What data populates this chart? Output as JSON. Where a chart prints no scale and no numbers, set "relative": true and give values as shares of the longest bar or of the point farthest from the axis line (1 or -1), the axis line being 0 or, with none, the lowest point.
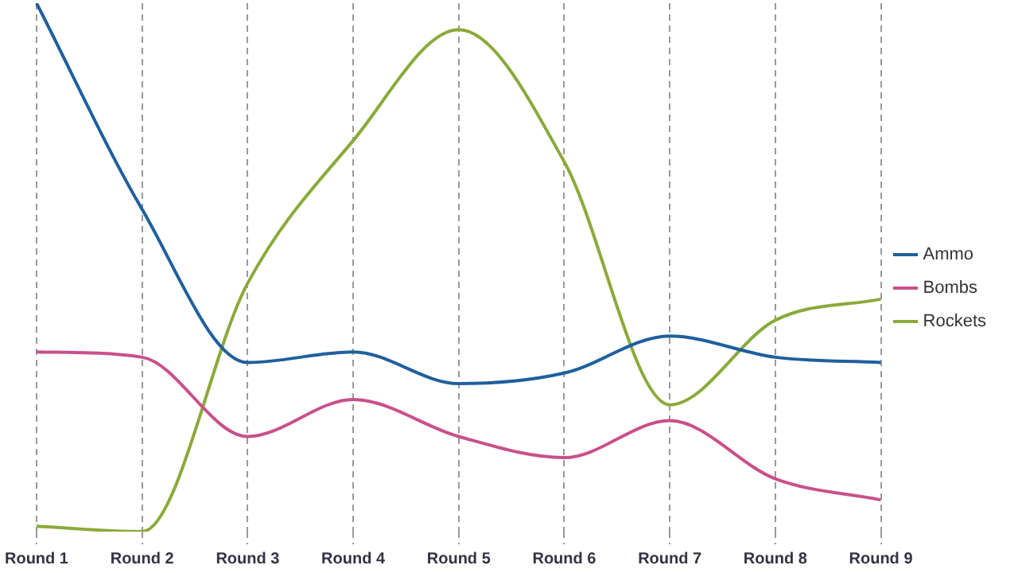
{
  "chart_data": {
    "type": "line",
    "relative": true,
    "categories": [
      "Round 1",
      "Round 2",
      "Round 3",
      "Round 4",
      "Round 5",
      "Round 6",
      "Round 7",
      "Round 8",
      "Round 9"
    ],
    "series": [
      {
        "name": "Ammo",
        "color": "#1f5f9e",
        "values": [
          1,
          0.61,
          0.32,
          0.34,
          0.28,
          0.3,
          0.37,
          0.33,
          0.32
        ]
      },
      {
        "name": "Bombs",
        "color": "#c9508a",
        "values": [
          0.34,
          0.33,
          0.18,
          0.25,
          0.18,
          0.14,
          0.21,
          0.1,
          0.06
        ]
      },
      {
        "name": "Rockets",
        "color": "#8aaa3a",
        "values": [
          0.01,
          0,
          0.47,
          0.74,
          0.95,
          0.7,
          0.24,
          0.4,
          0.44
        ]
      }
    ],
    "grid": "x",
    "legend": "right",
    "marker": "none"
  }
}
